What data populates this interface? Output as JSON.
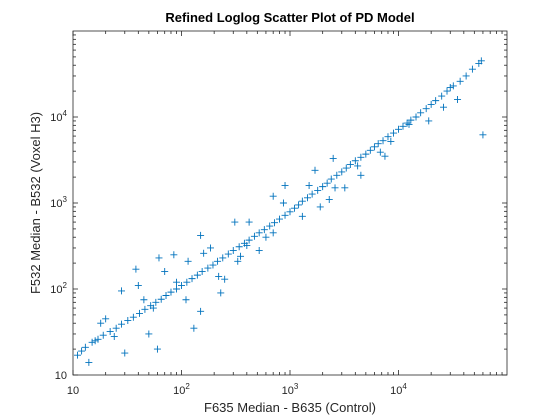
{
  "chart_data": {
    "type": "scatter",
    "title": "Refined Loglog Scatter Plot of PD Model",
    "xlabel": "F635 Median - B635 (Control)",
    "ylabel": "F532 Median - B532 (Voxel H3)",
    "xscale": "log",
    "yscale": "log",
    "xlim": [
      10,
      100000
    ],
    "ylim": [
      10,
      100000
    ],
    "x_ticks": [
      10,
      100,
      1000,
      10000
    ],
    "y_ticks": [
      10,
      100,
      1000,
      10000
    ],
    "marker": "+",
    "color": "#0072BD",
    "grid": false,
    "box": true,
    "series": [
      {
        "x": [
          58000,
          55000,
          48000,
          42000,
          37000,
          32000,
          28000,
          25000,
          22000,
          20000,
          18000,
          16000,
          14500,
          13000,
          12000,
          11000,
          10000,
          9000,
          8000,
          7200,
          6500,
          6000,
          5500,
          5000,
          4500,
          4000,
          3600,
          3300,
          3000,
          2700,
          2400,
          2200,
          2000,
          1800,
          1600,
          1450,
          1300,
          1200,
          1100,
          1000,
          900,
          800,
          720,
          650,
          580,
          520,
          470,
          420,
          380,
          340,
          300,
          270,
          240,
          215,
          195,
          175,
          155,
          140,
          125,
          112,
          100,
          90,
          80,
          72,
          65,
          58,
          52,
          46,
          41,
          36,
          32,
          28,
          25,
          22,
          19,
          17,
          15,
          13,
          12,
          11,
          60000,
          30000,
          12500,
          6800,
          4200,
          2600,
          1500,
          870,
          520,
          310,
          185,
          115,
          70,
          45,
          28,
          18,
          700,
          1300,
          2500,
          3200,
          4500,
          8500,
          600,
          350,
          1900,
          900,
          1700,
          2300,
          7500,
          19000,
          26000,
          35000,
          24,
          38,
          62,
          55,
          90,
          150,
          220,
          330,
          420,
          150,
          230,
          60,
          40,
          130,
          85,
          14,
          16,
          20,
          30,
          50,
          110,
          160,
          250,
          400,
          700
        ],
        "y": [
          45000,
          42000,
          36000,
          30000,
          26000,
          23000,
          20000,
          17500,
          15500,
          14000,
          12500,
          11200,
          10000,
          9200,
          8500,
          7800,
          7200,
          6500,
          5900,
          5300,
          4900,
          4500,
          4100,
          3700,
          3400,
          3100,
          2800,
          2550,
          2300,
          2100,
          1900,
          1700,
          1550,
          1400,
          1270,
          1150,
          1050,
          950,
          870,
          790,
          720,
          650,
          590,
          540,
          490,
          450,
          410,
          370,
          340,
          310,
          280,
          255,
          230,
          210,
          190,
          175,
          160,
          145,
          132,
          120,
          110,
          100,
          92,
          84,
          76,
          70,
          64,
          58,
          52,
          47,
          43,
          39,
          35,
          32,
          29,
          26,
          24,
          21,
          19,
          17,
          6200,
          22000,
          8200,
          3900,
          2700,
          1500,
          1600,
          1000,
          280,
          600,
          300,
          210,
          160,
          75,
          95,
          40,
          1200,
          700,
          3300,
          1500,
          2100,
          5200,
          400,
          240,
          900,
          1600,
          2400,
          1100,
          3500,
          9000,
          13000,
          16000,
          28,
          170,
          230,
          60,
          120,
          420,
          140,
          210,
          600,
          55,
          90,
          20,
          110,
          35,
          250,
          14,
          25,
          45,
          18,
          30,
          75,
          260,
          130,
          320,
          450
        ]
      }
    ]
  }
}
